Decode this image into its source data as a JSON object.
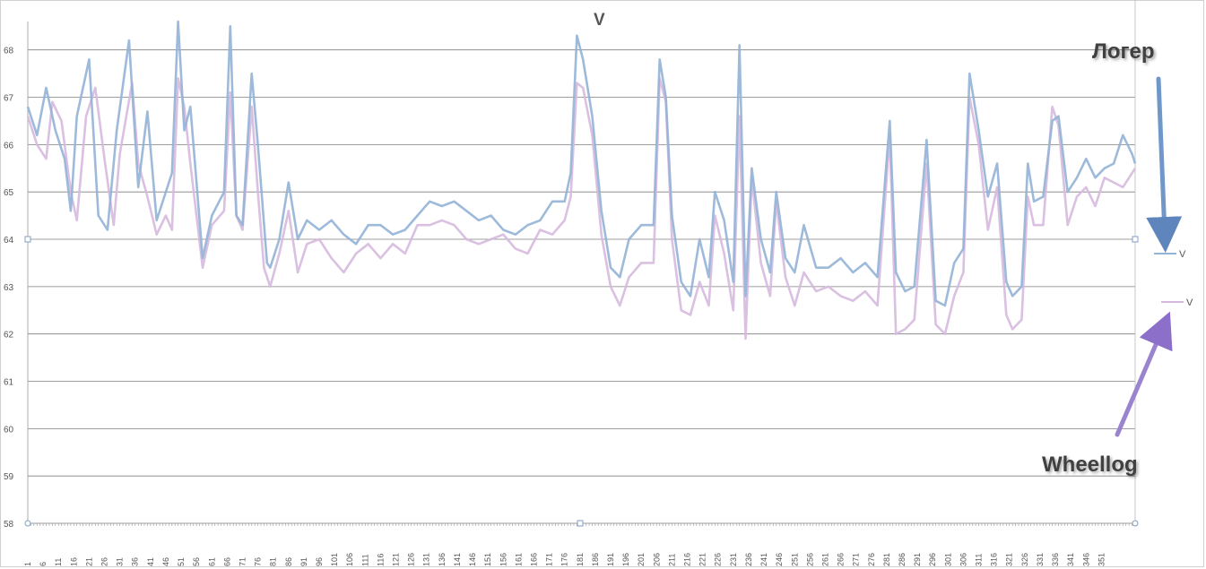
{
  "chart_data": {
    "type": "line",
    "title": "V",
    "xlabel": "",
    "ylabel": "",
    "ylim": [
      58,
      68.6
    ],
    "y_ticks": [
      "58",
      "59",
      "60",
      "61",
      "62",
      "63",
      "64",
      "65",
      "66",
      "67",
      "68"
    ],
    "x_tick_labels": [
      "1",
      "6",
      "11",
      "16",
      "21",
      "26",
      "31",
      "36",
      "41",
      "46",
      "51",
      "56",
      "61",
      "66",
      "71",
      "76",
      "81",
      "86",
      "91",
      "96",
      "101",
      "106",
      "111",
      "116",
      "121",
      "126",
      "131",
      "136",
      "141",
      "146",
      "151",
      "156",
      "161",
      "166",
      "171",
      "176",
      "181",
      "186",
      "191",
      "196",
      "201",
      "206",
      "211",
      "216",
      "221",
      "226",
      "231",
      "236",
      "241",
      "246",
      "251",
      "256",
      "261",
      "266",
      "271",
      "276",
      "281",
      "286",
      "291",
      "296",
      "301",
      "306",
      "311",
      "316",
      "321",
      "326",
      "331",
      "336",
      "341",
      "346",
      "351"
    ],
    "grid": true,
    "legend_position": "right",
    "series": [
      {
        "name": "V",
        "color": "#93b3d7",
        "keypoints": [
          [
            1,
            66.8
          ],
          [
            4,
            66.2
          ],
          [
            7,
            67.2
          ],
          [
            10,
            66.3
          ],
          [
            13,
            65.7
          ],
          [
            15,
            64.6
          ],
          [
            17,
            66.6
          ],
          [
            21,
            67.8
          ],
          [
            24,
            64.5
          ],
          [
            27,
            64.2
          ],
          [
            30,
            66.3
          ],
          [
            34,
            68.2
          ],
          [
            37,
            65.1
          ],
          [
            40,
            66.7
          ],
          [
            43,
            64.4
          ],
          [
            48,
            65.4
          ],
          [
            50,
            68.6
          ],
          [
            52,
            66.3
          ],
          [
            54,
            66.8
          ],
          [
            58,
            63.6
          ],
          [
            61,
            64.5
          ],
          [
            65,
            65.0
          ],
          [
            67,
            68.5
          ],
          [
            69,
            64.5
          ],
          [
            71,
            64.3
          ],
          [
            74,
            67.5
          ],
          [
            76,
            66.0
          ],
          [
            79,
            63.5
          ],
          [
            80,
            63.4
          ],
          [
            83,
            64.0
          ],
          [
            86,
            65.2
          ],
          [
            89,
            64.0
          ],
          [
            92,
            64.4
          ],
          [
            96,
            64.2
          ],
          [
            100,
            64.4
          ],
          [
            104,
            64.1
          ],
          [
            108,
            63.9
          ],
          [
            112,
            64.3
          ],
          [
            116,
            64.3
          ],
          [
            120,
            64.1
          ],
          [
            124,
            64.2
          ],
          [
            128,
            64.5
          ],
          [
            132,
            64.8
          ],
          [
            136,
            64.7
          ],
          [
            140,
            64.8
          ],
          [
            144,
            64.6
          ],
          [
            148,
            64.4
          ],
          [
            152,
            64.5
          ],
          [
            156,
            64.2
          ],
          [
            160,
            64.1
          ],
          [
            164,
            64.3
          ],
          [
            168,
            64.4
          ],
          [
            172,
            64.8
          ],
          [
            176,
            64.8
          ],
          [
            178,
            65.4
          ],
          [
            180,
            68.3
          ],
          [
            182,
            67.8
          ],
          [
            185,
            66.6
          ],
          [
            188,
            64.6
          ],
          [
            191,
            63.4
          ],
          [
            194,
            63.2
          ],
          [
            197,
            64.0
          ],
          [
            201,
            64.3
          ],
          [
            205,
            64.3
          ],
          [
            207,
            67.8
          ],
          [
            209,
            67.0
          ],
          [
            211,
            64.5
          ],
          [
            214,
            63.1
          ],
          [
            217,
            62.8
          ],
          [
            220,
            64.0
          ],
          [
            223,
            63.2
          ],
          [
            225,
            65.0
          ],
          [
            228,
            64.4
          ],
          [
            231,
            63.1
          ],
          [
            233,
            68.1
          ],
          [
            235,
            62.8
          ],
          [
            237,
            65.5
          ],
          [
            240,
            64.0
          ],
          [
            243,
            63.3
          ],
          [
            245,
            65.0
          ],
          [
            248,
            63.6
          ],
          [
            251,
            63.3
          ],
          [
            254,
            64.3
          ],
          [
            258,
            63.4
          ],
          [
            262,
            63.4
          ],
          [
            266,
            63.6
          ],
          [
            270,
            63.3
          ],
          [
            274,
            63.5
          ],
          [
            278,
            63.2
          ],
          [
            282,
            66.5
          ],
          [
            284,
            63.3
          ],
          [
            287,
            62.9
          ],
          [
            290,
            63.0
          ],
          [
            294,
            66.1
          ],
          [
            297,
            62.7
          ],
          [
            300,
            62.6
          ],
          [
            303,
            63.5
          ],
          [
            306,
            63.8
          ],
          [
            308,
            67.5
          ],
          [
            311,
            66.3
          ],
          [
            314,
            64.9
          ],
          [
            317,
            65.6
          ],
          [
            320,
            63.1
          ],
          [
            322,
            62.8
          ],
          [
            325,
            63.0
          ],
          [
            327,
            65.6
          ],
          [
            329,
            64.8
          ],
          [
            332,
            64.9
          ],
          [
            335,
            66.5
          ],
          [
            337,
            66.6
          ],
          [
            340,
            65.0
          ],
          [
            343,
            65.3
          ],
          [
            346,
            65.7
          ],
          [
            349,
            65.3
          ],
          [
            352,
            65.5
          ],
          [
            355,
            65.6
          ],
          [
            358,
            66.2
          ],
          [
            361,
            65.8
          ],
          [
            362,
            65.6
          ]
        ]
      },
      {
        "name": "V",
        "color": "#d6b9de",
        "keypoints": [
          [
            1,
            66.6
          ],
          [
            4,
            66.0
          ],
          [
            7,
            65.7
          ],
          [
            9,
            66.9
          ],
          [
            12,
            66.5
          ],
          [
            15,
            65.0
          ],
          [
            17,
            64.4
          ],
          [
            20,
            66.6
          ],
          [
            23,
            67.2
          ],
          [
            26,
            65.7
          ],
          [
            29,
            64.3
          ],
          [
            31,
            65.8
          ],
          [
            35,
            67.3
          ],
          [
            37,
            65.6
          ],
          [
            40,
            64.9
          ],
          [
            43,
            64.1
          ],
          [
            46,
            64.5
          ],
          [
            48,
            64.2
          ],
          [
            50,
            67.4
          ],
          [
            52,
            66.8
          ],
          [
            54,
            65.6
          ],
          [
            58,
            63.4
          ],
          [
            61,
            64.3
          ],
          [
            65,
            64.6
          ],
          [
            67,
            67.1
          ],
          [
            69,
            64.5
          ],
          [
            71,
            64.2
          ],
          [
            74,
            66.8
          ],
          [
            76,
            65.0
          ],
          [
            78,
            63.4
          ],
          [
            80,
            63.0
          ],
          [
            83,
            63.7
          ],
          [
            86,
            64.6
          ],
          [
            89,
            63.3
          ],
          [
            92,
            63.9
          ],
          [
            96,
            64.0
          ],
          [
            100,
            63.6
          ],
          [
            104,
            63.3
          ],
          [
            108,
            63.7
          ],
          [
            112,
            63.9
          ],
          [
            116,
            63.6
          ],
          [
            120,
            63.9
          ],
          [
            124,
            63.7
          ],
          [
            128,
            64.3
          ],
          [
            132,
            64.3
          ],
          [
            136,
            64.4
          ],
          [
            140,
            64.3
          ],
          [
            144,
            64.0
          ],
          [
            148,
            63.9
          ],
          [
            152,
            64.0
          ],
          [
            156,
            64.1
          ],
          [
            160,
            63.8
          ],
          [
            164,
            63.7
          ],
          [
            168,
            64.2
          ],
          [
            172,
            64.1
          ],
          [
            176,
            64.4
          ],
          [
            178,
            64.9
          ],
          [
            180,
            67.3
          ],
          [
            182,
            67.2
          ],
          [
            185,
            66.2
          ],
          [
            188,
            64.1
          ],
          [
            191,
            63.0
          ],
          [
            194,
            62.6
          ],
          [
            197,
            63.2
          ],
          [
            201,
            63.5
          ],
          [
            205,
            63.5
          ],
          [
            207,
            67.4
          ],
          [
            209,
            66.9
          ],
          [
            211,
            64.0
          ],
          [
            214,
            62.5
          ],
          [
            217,
            62.4
          ],
          [
            220,
            63.1
          ],
          [
            223,
            62.6
          ],
          [
            225,
            64.5
          ],
          [
            228,
            63.7
          ],
          [
            231,
            62.5
          ],
          [
            233,
            66.6
          ],
          [
            235,
            61.9
          ],
          [
            237,
            65.3
          ],
          [
            240,
            63.5
          ],
          [
            243,
            62.8
          ],
          [
            245,
            64.8
          ],
          [
            248,
            63.2
          ],
          [
            251,
            62.6
          ],
          [
            254,
            63.3
          ],
          [
            258,
            62.9
          ],
          [
            262,
            63.0
          ],
          [
            266,
            62.8
          ],
          [
            270,
            62.7
          ],
          [
            274,
            62.9
          ],
          [
            278,
            62.6
          ],
          [
            282,
            66.2
          ],
          [
            284,
            62.0
          ],
          [
            287,
            62.1
          ],
          [
            290,
            62.3
          ],
          [
            294,
            65.6
          ],
          [
            297,
            62.2
          ],
          [
            300,
            62.0
          ],
          [
            303,
            62.8
          ],
          [
            306,
            63.3
          ],
          [
            308,
            67.0
          ],
          [
            311,
            66.0
          ],
          [
            314,
            64.2
          ],
          [
            317,
            65.1
          ],
          [
            320,
            62.4
          ],
          [
            322,
            62.1
          ],
          [
            325,
            62.3
          ],
          [
            327,
            64.9
          ],
          [
            329,
            64.3
          ],
          [
            332,
            64.3
          ],
          [
            335,
            66.8
          ],
          [
            337,
            66.4
          ],
          [
            340,
            64.3
          ],
          [
            343,
            64.9
          ],
          [
            346,
            65.1
          ],
          [
            349,
            64.7
          ],
          [
            352,
            65.3
          ],
          [
            355,
            65.2
          ],
          [
            358,
            65.1
          ],
          [
            361,
            65.4
          ],
          [
            362,
            65.5
          ]
        ]
      }
    ]
  },
  "annotations": {
    "loger_label": "Логер",
    "wheellog_label": "Wheellog"
  },
  "colors": {
    "grid": "#7f7f7f",
    "arrow_top": "#6f97c9",
    "arrow_bottom": "#9b84cf"
  }
}
